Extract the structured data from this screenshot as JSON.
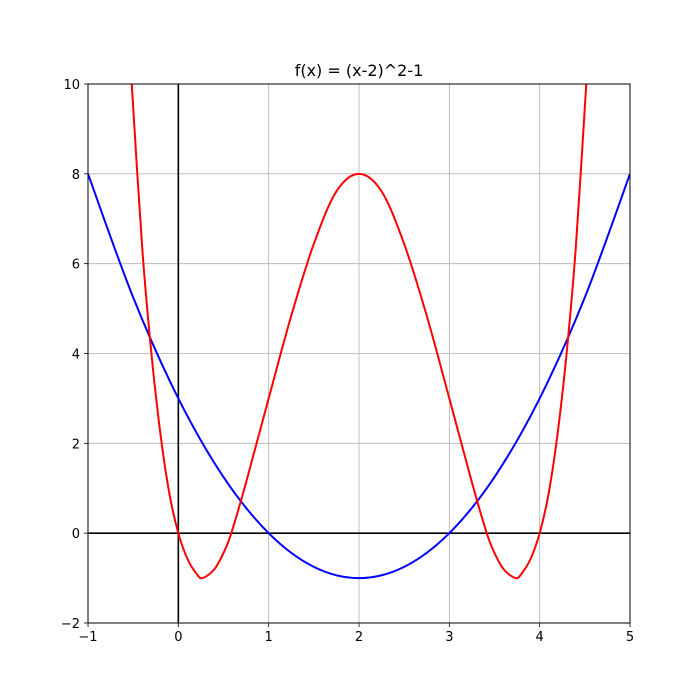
{
  "chart_data": {
    "type": "line",
    "title": "f(x) = (x-2)^2-1",
    "xlabel": "",
    "ylabel": "",
    "xlim": [
      -1,
      5
    ],
    "ylim": [
      -2,
      10
    ],
    "x_ticks": [
      -1,
      0,
      1,
      2,
      3,
      4,
      5
    ],
    "y_ticks": [
      -2,
      0,
      2,
      4,
      6,
      8,
      10
    ],
    "x_tick_labels": [
      "−1",
      "0",
      "1",
      "2",
      "3",
      "4",
      "5"
    ],
    "y_tick_labels": [
      "−2",
      "0",
      "2",
      "4",
      "6",
      "8",
      "10"
    ],
    "grid": true,
    "axis_lines": {
      "x_equals": 0,
      "y_equals": 0
    },
    "series": [
      {
        "color": "#0000ff",
        "x": [
          -1,
          -0.5,
          0,
          0.5,
          1,
          1.5,
          2,
          2.5,
          3,
          3.5,
          4,
          4.5,
          5
        ],
        "values": [
          8,
          5.25,
          3,
          1.25,
          0,
          -0.75,
          -1,
          -0.75,
          0,
          1.25,
          3,
          5.25,
          8
        ]
      },
      {
        "color": "#ff0000",
        "x": [
          -0.52,
          -0.4,
          -0.3,
          -0.2,
          -0.1,
          0,
          0.1,
          0.2,
          0.268,
          0.4,
          0.5,
          0.586,
          0.75,
          1,
          1.25,
          1.5,
          1.75,
          2,
          2.25,
          2.5,
          2.75,
          3,
          3.25,
          3.414,
          3.5,
          3.6,
          3.732,
          3.8,
          3.9,
          4,
          4.1,
          4.2,
          4.3,
          4.4,
          4.52
        ],
        "values": [
          10.13,
          6.36,
          4.04,
          2.24,
          0.89,
          0,
          -0.57,
          -0.9,
          -1.0,
          -0.8,
          -0.44,
          0,
          1.13,
          3,
          4.84,
          6.44,
          7.61,
          8,
          7.61,
          6.44,
          4.84,
          3,
          1.13,
          0,
          -0.44,
          -0.8,
          -1.0,
          -0.9,
          -0.57,
          0,
          0.89,
          2.24,
          4.04,
          6.36,
          10.13
        ]
      }
    ]
  }
}
